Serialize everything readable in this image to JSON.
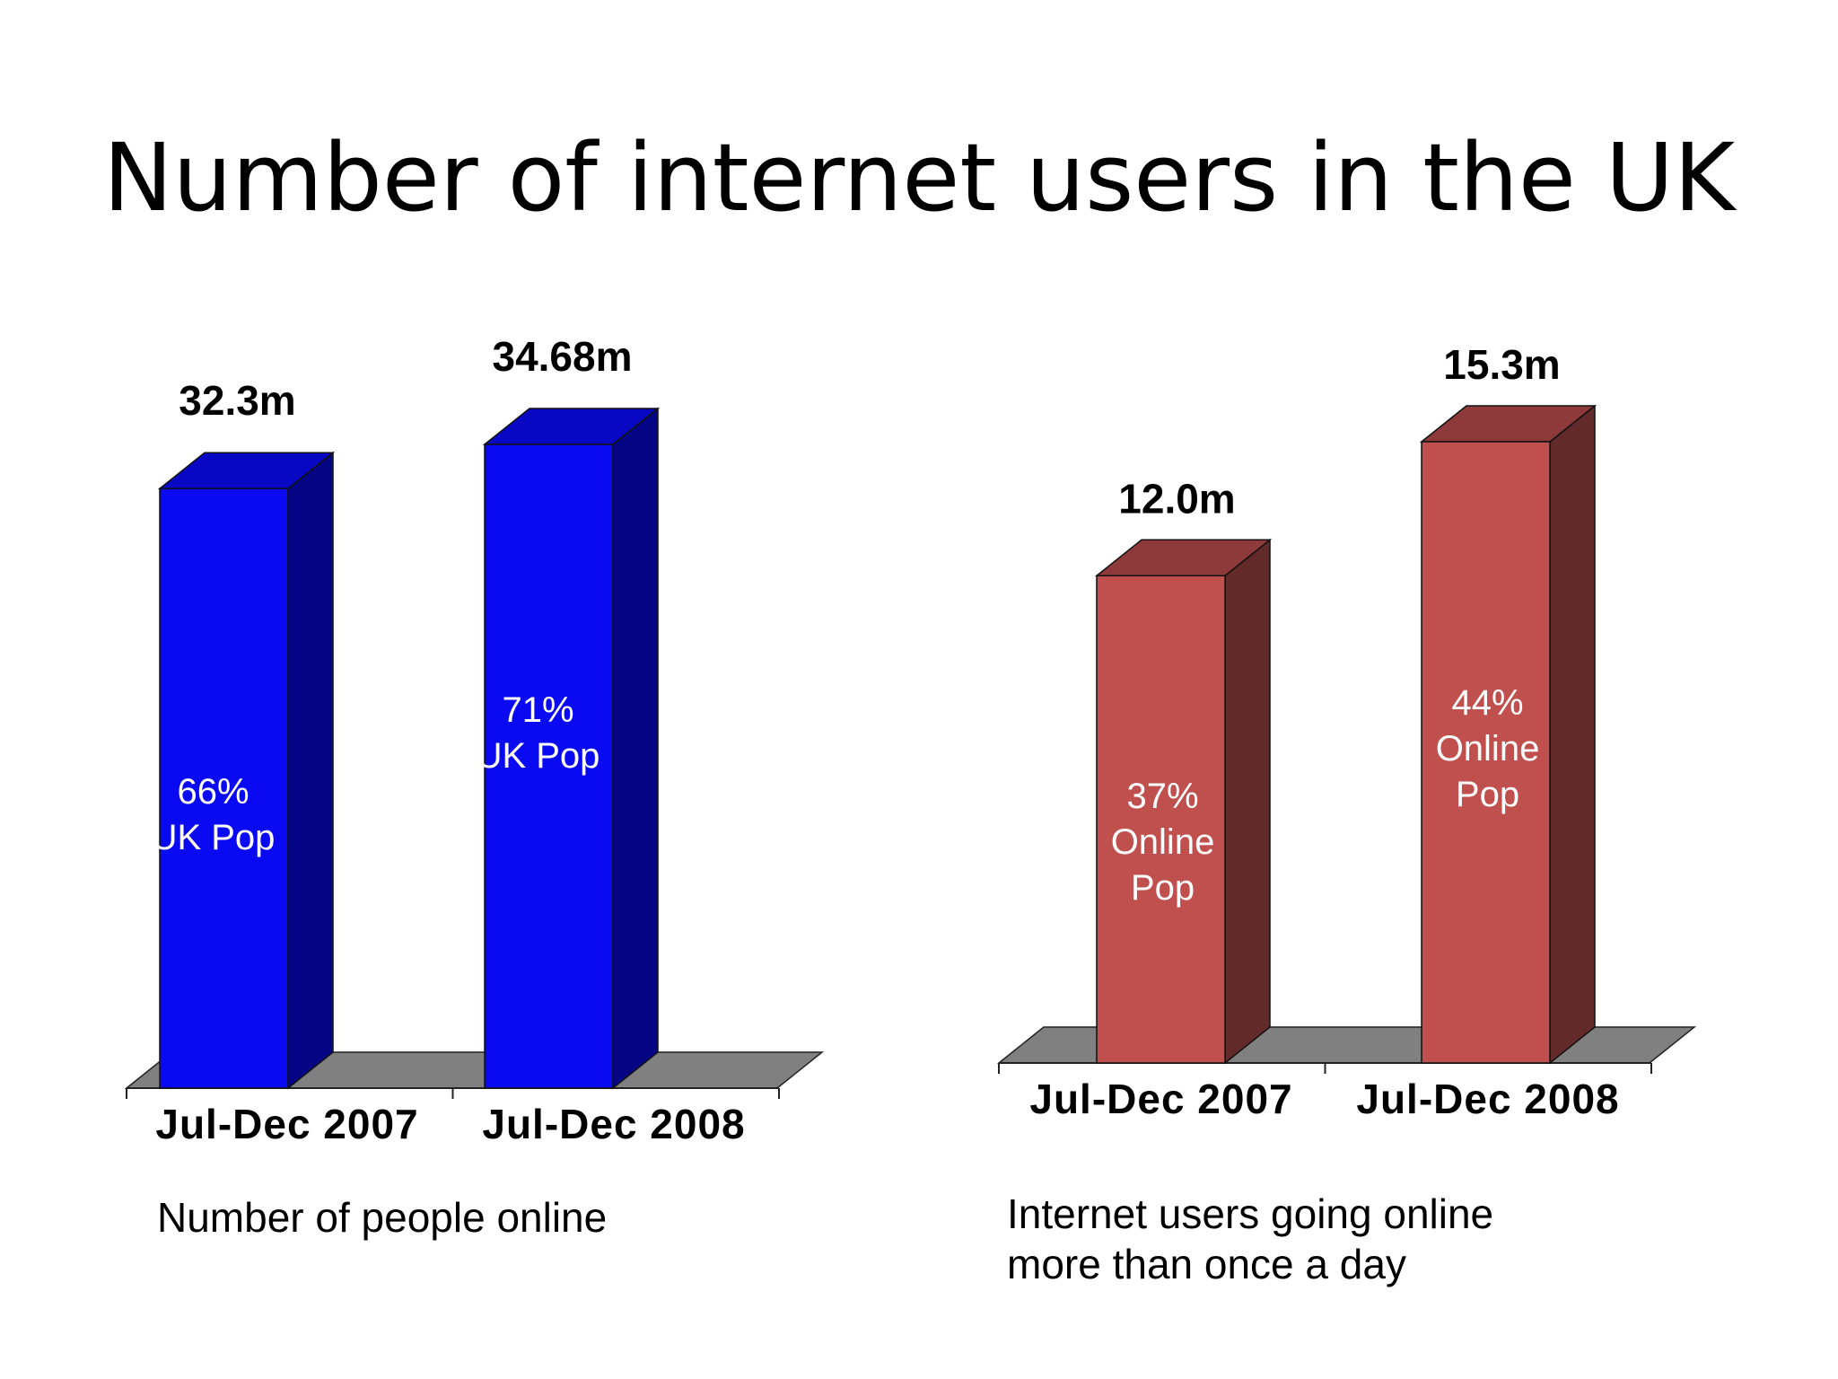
{
  "slide": {
    "title": "Number of internet users in the UK"
  },
  "captions": {
    "left": "Number of people online",
    "right": "Internet users going online more than once a day"
  },
  "colors": {
    "left_front": "#0a0af2",
    "left_side": "#050585",
    "left_top": "#0808c4",
    "right_front": "#c0504d",
    "right_side": "#622a29",
    "right_top": "#8e3a3a",
    "floor": "#808080"
  },
  "chart_data": [
    {
      "type": "bar",
      "style": "3d-column",
      "categories": [
        "Jul-Dec 2007",
        "Jul-Dec 2008"
      ],
      "values": [
        32.3,
        34.68
      ],
      "value_labels": [
        "32.3m",
        "34.68m"
      ],
      "inner_labels": [
        [
          "66%",
          "UK Pop"
        ],
        [
          "71%",
          "UK Pop"
        ]
      ],
      "ylim": [
        0,
        34.68
      ],
      "grid": false,
      "legend": "none"
    },
    {
      "type": "bar",
      "style": "3d-column",
      "categories": [
        "Jul-Dec 2007",
        "Jul-Dec 2008"
      ],
      "values": [
        12.0,
        15.3
      ],
      "value_labels": [
        "12.0m",
        "15.3m"
      ],
      "inner_labels": [
        [
          "37%",
          "Online",
          "Pop"
        ],
        [
          "44%",
          "Online",
          "Pop"
        ]
      ],
      "ylim": [
        0,
        15.3
      ],
      "grid": false,
      "legend": "none"
    }
  ]
}
